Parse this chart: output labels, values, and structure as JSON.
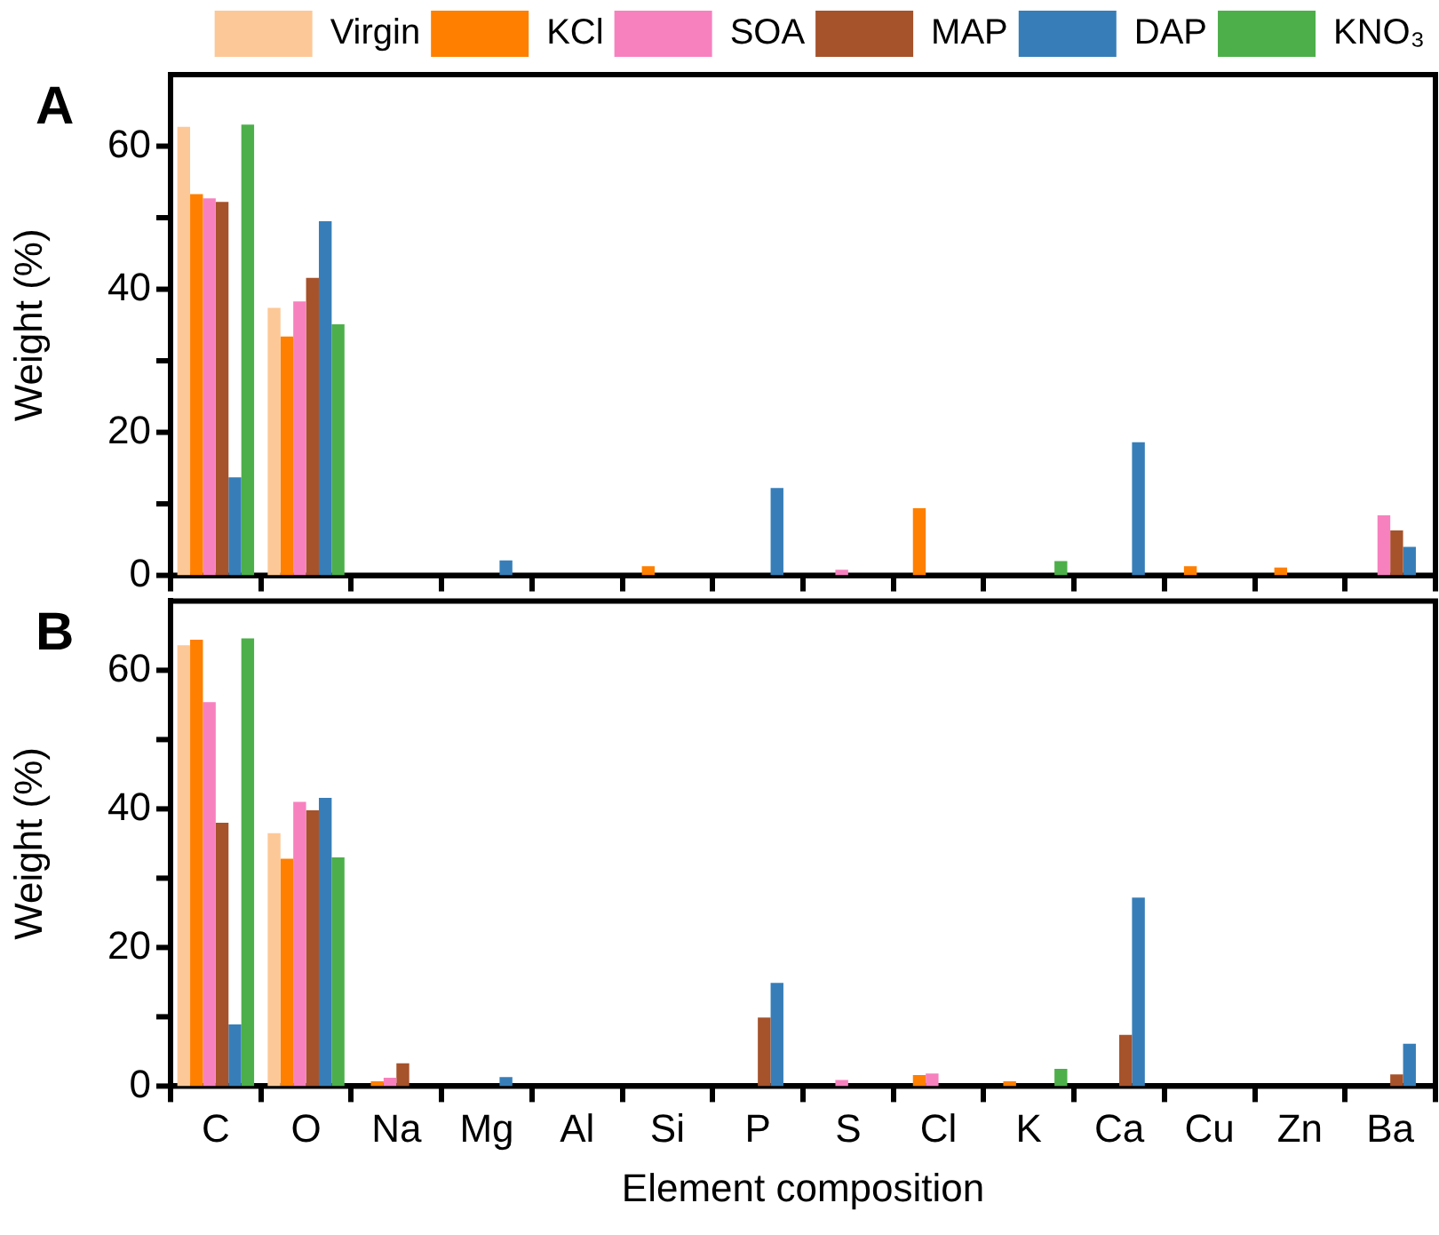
{
  "chart_data": [
    {
      "type": "bar",
      "title": "A",
      "ylabel": "Weight (%)",
      "categories": [
        null,
        null,
        null,
        null,
        null,
        null,
        null,
        null,
        null,
        null,
        null,
        null,
        null,
        null
      ],
      "ylim": [
        0,
        70
      ],
      "yticks": [
        0,
        {
          "value": 10,
          "label": null
        },
        20,
        {
          "value": 30,
          "label": null
        },
        40,
        {
          "value": 50,
          "label": null
        },
        60
      ],
      "tick_labels": "y",
      "legend": "top",
      "grid": false,
      "series": [
        {
          "name": "Virgin",
          "color": "#fdc897",
          "values": [
            62.7,
            37.4,
            null,
            null,
            null,
            null,
            null,
            null,
            null,
            null,
            null,
            null,
            null,
            null
          ]
        },
        {
          "name": "KCl",
          "color": "#ff7f00",
          "values": [
            53.3,
            33.4,
            null,
            null,
            null,
            1.3,
            null,
            null,
            9.4,
            null,
            null,
            1.3,
            1.1,
            null
          ]
        },
        {
          "name": "SOA",
          "color": "#f781bf",
          "values": [
            52.7,
            38.3,
            null,
            null,
            null,
            null,
            null,
            0.8,
            null,
            null,
            null,
            null,
            null,
            8.4
          ]
        },
        {
          "name": "MAP",
          "color": "#a6522b",
          "values": [
            52.2,
            41.6,
            null,
            null,
            null,
            null,
            null,
            null,
            null,
            null,
            null,
            null,
            null,
            6.3
          ]
        },
        {
          "name": "DAP",
          "color": "#377eb8",
          "values": [
            13.7,
            49.5,
            null,
            2.1,
            null,
            null,
            12.2,
            null,
            null,
            null,
            18.6,
            null,
            null,
            4.0
          ]
        },
        {
          "name": "KNO₃",
          "color": "#4daf4a",
          "values": [
            63.0,
            35.1,
            null,
            null,
            null,
            null,
            null,
            null,
            null,
            2.0,
            null,
            null,
            null,
            null
          ]
        }
      ]
    },
    {
      "type": "bar",
      "title": "B",
      "xlabel": "Element composition",
      "ylabel": "Weight (%)",
      "categories": [
        "C",
        "O",
        "Na",
        "Mg",
        "Al",
        "Si",
        "P",
        "S",
        "Cl",
        "K",
        "Ca",
        "Cu",
        "Zn",
        "Ba"
      ],
      "ylim": [
        0,
        70
      ],
      "yticks": [
        0,
        {
          "value": 10,
          "label": null
        },
        20,
        {
          "value": 30,
          "label": null
        },
        40,
        {
          "value": 50,
          "label": null
        },
        60
      ],
      "grid": false,
      "series": [
        {
          "color": "#fdc897",
          "values": [
            63.6,
            36.5,
            null,
            null,
            null,
            null,
            null,
            null,
            null,
            null,
            null,
            null,
            null,
            null
          ]
        },
        {
          "color": "#ff7f00",
          "values": [
            64.4,
            32.8,
            0.7,
            null,
            null,
            null,
            null,
            null,
            1.6,
            0.7,
            null,
            null,
            null,
            null
          ]
        },
        {
          "color": "#f781bf",
          "values": [
            55.4,
            41.0,
            1.2,
            null,
            null,
            null,
            null,
            0.9,
            1.8,
            null,
            null,
            null,
            null,
            null
          ]
        },
        {
          "color": "#a6522b",
          "values": [
            38.0,
            39.8,
            3.3,
            null,
            null,
            null,
            9.9,
            null,
            null,
            null,
            7.4,
            null,
            null,
            1.7
          ]
        },
        {
          "color": "#377eb8",
          "values": [
            8.9,
            41.6,
            null,
            1.3,
            null,
            null,
            14.9,
            null,
            null,
            null,
            27.2,
            null,
            null,
            6.1
          ]
        },
        {
          "color": "#4daf4a",
          "values": [
            64.6,
            33.0,
            null,
            null,
            null,
            null,
            null,
            null,
            null,
            2.5,
            null,
            null,
            null,
            null
          ]
        }
      ]
    }
  ]
}
